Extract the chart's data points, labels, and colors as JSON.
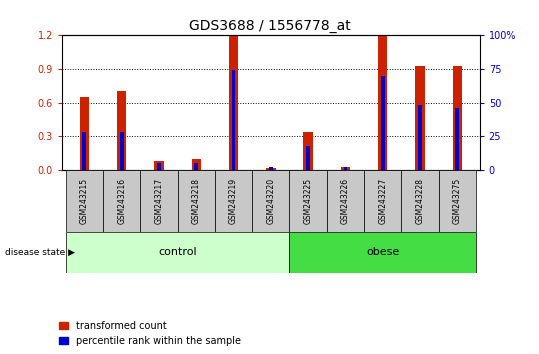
{
  "title": "GDS3688 / 1556778_at",
  "samples": [
    "GSM243215",
    "GSM243216",
    "GSM243217",
    "GSM243218",
    "GSM243219",
    "GSM243220",
    "GSM243225",
    "GSM243226",
    "GSM243227",
    "GSM243228",
    "GSM243275"
  ],
  "red_values": [
    0.65,
    0.7,
    0.08,
    0.1,
    1.2,
    0.02,
    0.34,
    0.03,
    1.2,
    0.93,
    0.93
  ],
  "blue_values_pct": [
    28,
    28,
    5,
    5,
    74,
    2,
    18,
    2,
    70,
    48,
    46
  ],
  "groups": [
    {
      "label": "control",
      "start": 0,
      "end": 5,
      "color": "#CCFFCC"
    },
    {
      "label": "obese",
      "start": 6,
      "end": 10,
      "color": "#44DD44"
    }
  ],
  "ylim_left": [
    0,
    1.2
  ],
  "ylim_right": [
    0,
    100
  ],
  "yticks_left": [
    0,
    0.3,
    0.6,
    0.9,
    1.2
  ],
  "yticks_right": [
    0,
    25,
    50,
    75,
    100
  ],
  "red_color": "#CC2200",
  "blue_color": "#0000CC",
  "legend_red": "transformed count",
  "legend_blue": "percentile rank within the sample"
}
